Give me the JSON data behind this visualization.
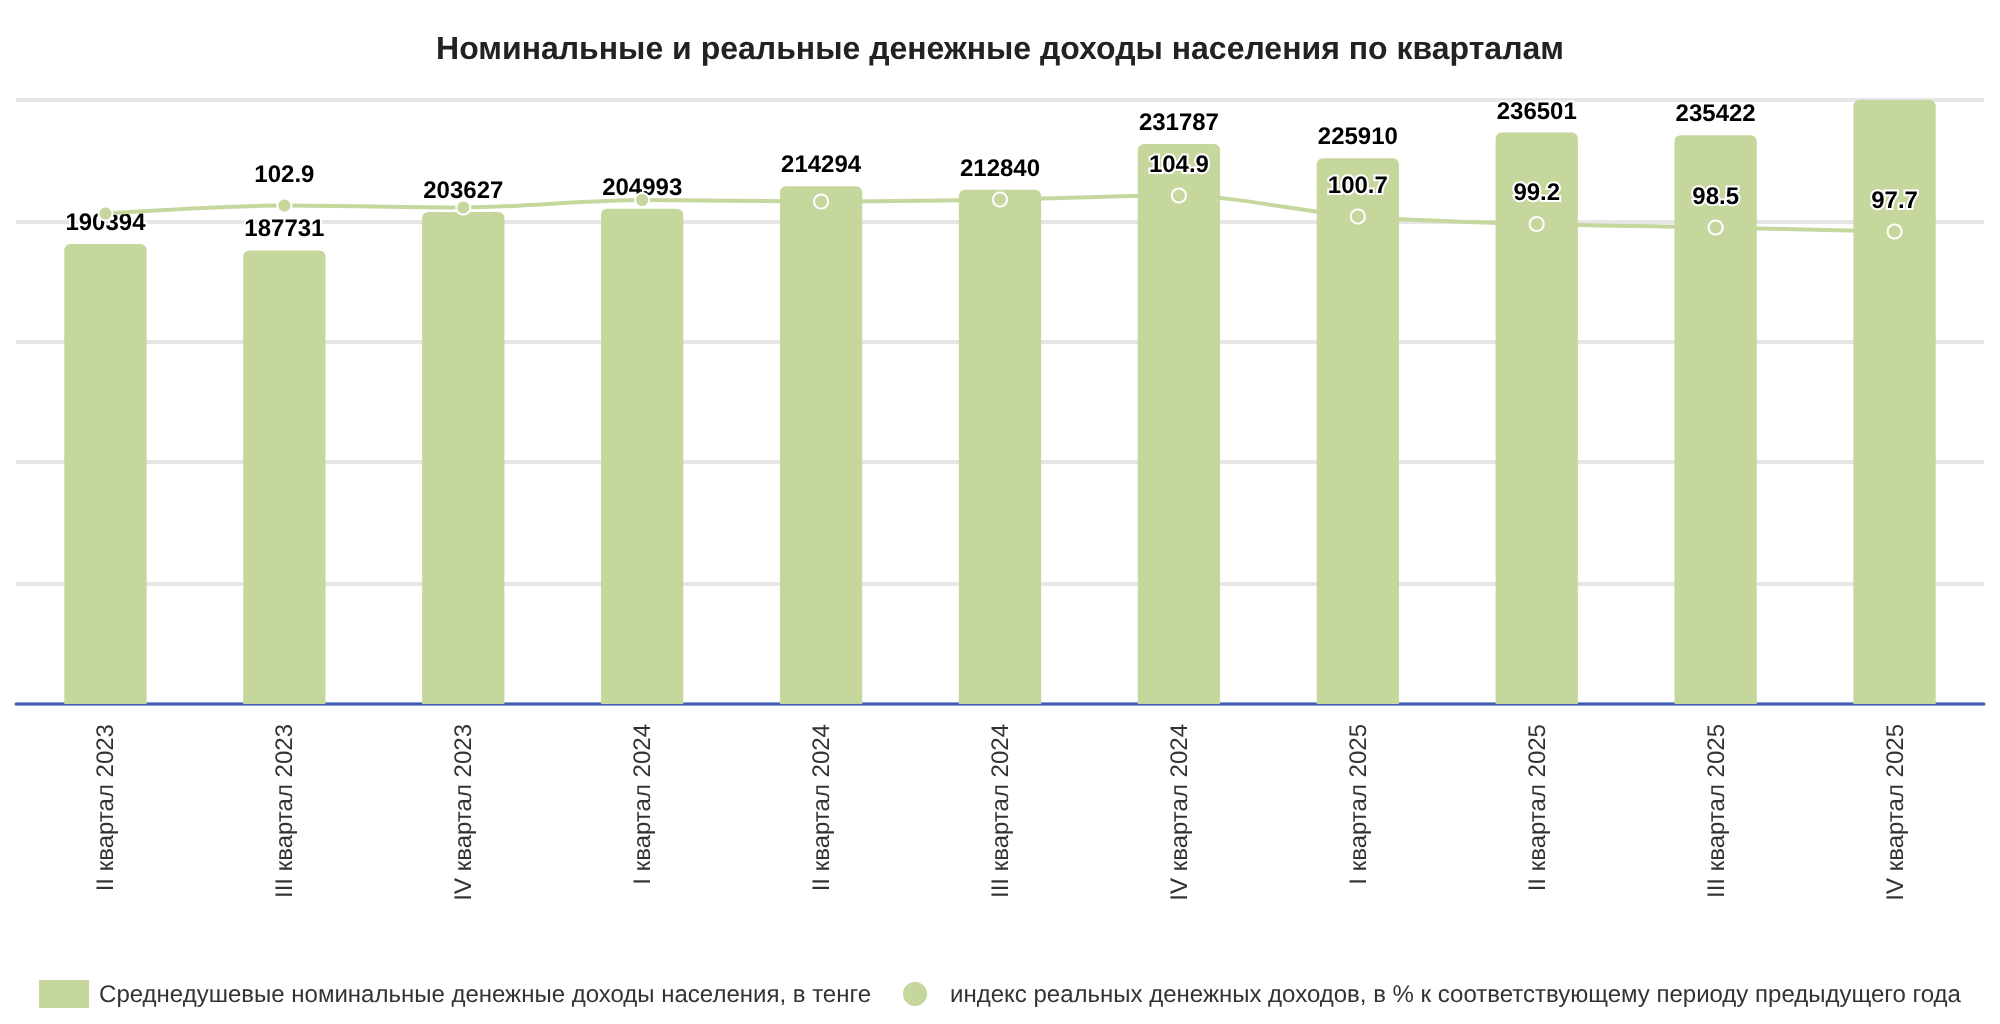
{
  "chart_data": {
    "type": "bar",
    "title": "Номинальные и реальные денежные доходы населения по кварталам",
    "categories": [
      "II квартал 2023",
      "III квартал 2023",
      "IV квартал 2023",
      "I квартал 2024",
      "II квартал 2024",
      "III квартал 2024",
      "IV квартал 2024",
      "I квартал 2025",
      "II квартал 2025",
      "III квартал 2025",
      "IV квартал 2025"
    ],
    "series": [
      {
        "name": "Среднедушевые номинальные денежные доходы населения, в тенге",
        "color": "#c5d79d",
        "values": [
          190394,
          187731,
          203627,
          204993,
          214294,
          212840,
          231787,
          225910,
          236501,
          235422,
          250000
        ],
        "value_labels": [
          "190394",
          "187731",
          "203627",
          "204993",
          "214294",
          "212840",
          "231787",
          "225910",
          "236501",
          "235422",
          null
        ]
      },
      {
        "name": "индекс реальных денежных доходов, в % к соответствующему периоду предыдущего года",
        "type": "line",
        "axis": "y2",
        "color": "#c5d79d",
        "marker": "circle",
        "values": [
          101.3,
          102.9,
          102.5,
          104.0,
          103.7,
          104.1,
          104.9,
          100.7,
          99.2,
          98.5,
          97.7
        ],
        "value_labels": [
          null,
          "102.9",
          null,
          null,
          null,
          null,
          "104.9",
          "100.7",
          "99.2",
          "98.5",
          "97.7"
        ]
      }
    ],
    "ylim": [
      0,
      250000
    ],
    "yticks": [
      {
        "value": 0,
        "label": null
      },
      {
        "value": 50000,
        "label": null
      },
      {
        "value": 100000,
        "label": null
      },
      {
        "value": 150000,
        "label": null
      },
      {
        "value": 200000,
        "label": null
      },
      {
        "value": 250000,
        "label": null
      }
    ],
    "grid": "y",
    "legend": "bottom",
    "tick_labels": "x"
  }
}
